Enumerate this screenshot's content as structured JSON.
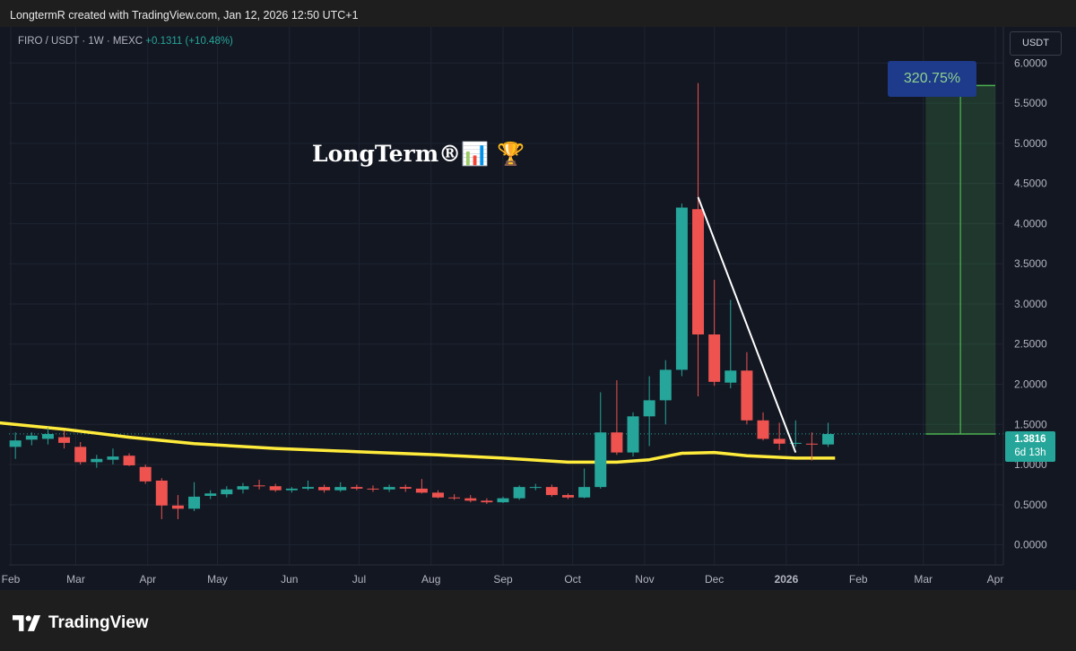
{
  "header": {
    "attribution": "LongtermR created with TradingView.com, Jan 12, 2026 12:50 UTC+1"
  },
  "symbol": {
    "label": "FIRO / USDT · 1W · MEXC",
    "change": "+0.1311 (+10.48%)"
  },
  "currency_button": "USDT",
  "watermark": "LongTerm®📊 🏆",
  "measure_label": "320.75%",
  "price_tag": {
    "price": "1.3816",
    "countdown": "6d 13h"
  },
  "brand": "TradingView",
  "colors": {
    "up": "#26a69a",
    "down": "#ef5350",
    "ma": "#ffeb3b",
    "trendline": "#ffffff",
    "measure": "#4caf50",
    "measure_box": "#1e3a8a"
  },
  "chart_data": {
    "type": "candlestick",
    "y_axis_ticks": [
      "6.0000",
      "5.5000",
      "5.0000",
      "4.5000",
      "4.0000",
      "3.5000",
      "3.0000",
      "2.5000",
      "2.0000",
      "1.5000",
      "1.0000",
      "0.5000",
      "0.0000"
    ],
    "ylim": [
      -0.25,
      6.45
    ],
    "x_axis_labels": [
      "Feb",
      "Mar",
      "Apr",
      "May",
      "Jun",
      "Jul",
      "Aug",
      "Sep",
      "Oct",
      "Nov",
      "Dec",
      "2026",
      "Feb",
      "Mar",
      "Apr"
    ],
    "x_label_dates": [
      "2025-02-01",
      "2025-03-01",
      "2025-04-01",
      "2025-05-01",
      "2025-06-01",
      "2025-07-01",
      "2025-08-01",
      "2025-09-01",
      "2025-10-01",
      "2025-11-01",
      "2025-12-01",
      "2026-01-01",
      "2026-02-01",
      "2026-03-01",
      "2026-04-01"
    ],
    "candles": [
      {
        "t": "2025-02-03",
        "o": 1.22,
        "h": 1.4,
        "l": 1.07,
        "c": 1.3
      },
      {
        "t": "2025-02-10",
        "o": 1.31,
        "h": 1.4,
        "l": 1.24,
        "c": 1.36
      },
      {
        "t": "2025-02-17",
        "o": 1.32,
        "h": 1.46,
        "l": 1.25,
        "c": 1.38
      },
      {
        "t": "2025-02-24",
        "o": 1.34,
        "h": 1.42,
        "l": 1.2,
        "c": 1.27
      },
      {
        "t": "2025-03-03",
        "o": 1.22,
        "h": 1.28,
        "l": 1.0,
        "c": 1.03
      },
      {
        "t": "2025-03-10",
        "o": 1.03,
        "h": 1.12,
        "l": 0.96,
        "c": 1.07
      },
      {
        "t": "2025-03-17",
        "o": 1.06,
        "h": 1.2,
        "l": 1.0,
        "c": 1.1
      },
      {
        "t": "2025-03-24",
        "o": 1.11,
        "h": 1.14,
        "l": 0.98,
        "c": 0.99
      },
      {
        "t": "2025-03-31",
        "o": 0.97,
        "h": 1.0,
        "l": 0.76,
        "c": 0.79
      },
      {
        "t": "2025-04-07",
        "o": 0.8,
        "h": 0.83,
        "l": 0.32,
        "c": 0.49
      },
      {
        "t": "2025-04-14",
        "o": 0.49,
        "h": 0.62,
        "l": 0.32,
        "c": 0.45
      },
      {
        "t": "2025-04-21",
        "o": 0.45,
        "h": 0.78,
        "l": 0.42,
        "c": 0.6
      },
      {
        "t": "2025-04-28",
        "o": 0.61,
        "h": 0.68,
        "l": 0.57,
        "c": 0.64
      },
      {
        "t": "2025-05-05",
        "o": 0.63,
        "h": 0.73,
        "l": 0.59,
        "c": 0.69
      },
      {
        "t": "2025-05-12",
        "o": 0.69,
        "h": 0.77,
        "l": 0.64,
        "c": 0.73
      },
      {
        "t": "2025-05-19",
        "o": 0.74,
        "h": 0.81,
        "l": 0.69,
        "c": 0.73
      },
      {
        "t": "2025-05-26",
        "o": 0.73,
        "h": 0.76,
        "l": 0.66,
        "c": 0.68
      },
      {
        "t": "2025-06-02",
        "o": 0.68,
        "h": 0.72,
        "l": 0.65,
        "c": 0.7
      },
      {
        "t": "2025-06-09",
        "o": 0.7,
        "h": 0.8,
        "l": 0.68,
        "c": 0.72
      },
      {
        "t": "2025-06-16",
        "o": 0.72,
        "h": 0.75,
        "l": 0.65,
        "c": 0.68
      },
      {
        "t": "2025-06-23",
        "o": 0.68,
        "h": 0.78,
        "l": 0.66,
        "c": 0.72
      },
      {
        "t": "2025-06-30",
        "o": 0.72,
        "h": 0.75,
        "l": 0.68,
        "c": 0.7
      },
      {
        "t": "2025-07-07",
        "o": 0.7,
        "h": 0.74,
        "l": 0.66,
        "c": 0.69
      },
      {
        "t": "2025-07-14",
        "o": 0.69,
        "h": 0.75,
        "l": 0.66,
        "c": 0.72
      },
      {
        "t": "2025-07-21",
        "o": 0.72,
        "h": 0.75,
        "l": 0.66,
        "c": 0.7
      },
      {
        "t": "2025-07-28",
        "o": 0.7,
        "h": 0.82,
        "l": 0.64,
        "c": 0.65
      },
      {
        "t": "2025-08-04",
        "o": 0.65,
        "h": 0.68,
        "l": 0.58,
        "c": 0.59
      },
      {
        "t": "2025-08-11",
        "o": 0.59,
        "h": 0.63,
        "l": 0.56,
        "c": 0.58
      },
      {
        "t": "2025-08-18",
        "o": 0.58,
        "h": 0.62,
        "l": 0.53,
        "c": 0.55
      },
      {
        "t": "2025-08-25",
        "o": 0.55,
        "h": 0.58,
        "l": 0.51,
        "c": 0.53
      },
      {
        "t": "2025-09-01",
        "o": 0.53,
        "h": 0.6,
        "l": 0.52,
        "c": 0.58
      },
      {
        "t": "2025-09-08",
        "o": 0.58,
        "h": 0.74,
        "l": 0.56,
        "c": 0.72
      },
      {
        "t": "2025-09-15",
        "o": 0.72,
        "h": 0.76,
        "l": 0.68,
        "c": 0.72
      },
      {
        "t": "2025-09-22",
        "o": 0.72,
        "h": 0.75,
        "l": 0.6,
        "c": 0.62
      },
      {
        "t": "2025-09-29",
        "o": 0.62,
        "h": 0.64,
        "l": 0.57,
        "c": 0.59
      },
      {
        "t": "2025-10-06",
        "o": 0.59,
        "h": 0.95,
        "l": 0.58,
        "c": 0.72
      },
      {
        "t": "2025-10-13",
        "o": 0.72,
        "h": 1.9,
        "l": 0.7,
        "c": 1.4
      },
      {
        "t": "2025-10-20",
        "o": 1.4,
        "h": 2.05,
        "l": 1.12,
        "c": 1.15
      },
      {
        "t": "2025-10-27",
        "o": 1.15,
        "h": 1.65,
        "l": 1.1,
        "c": 1.6
      },
      {
        "t": "2025-11-03",
        "o": 1.6,
        "h": 2.1,
        "l": 1.23,
        "c": 1.8
      },
      {
        "t": "2025-11-10",
        "o": 1.8,
        "h": 2.3,
        "l": 1.5,
        "c": 2.18
      },
      {
        "t": "2025-11-17",
        "o": 2.18,
        "h": 4.25,
        "l": 2.1,
        "c": 4.2
      },
      {
        "t": "2025-11-24",
        "o": 4.18,
        "h": 5.75,
        "l": 1.85,
        "c": 2.62
      },
      {
        "t": "2025-12-01",
        "o": 2.62,
        "h": 3.3,
        "l": 1.98,
        "c": 2.03
      },
      {
        "t": "2025-12-08",
        "o": 2.02,
        "h": 3.05,
        "l": 1.95,
        "c": 2.17
      },
      {
        "t": "2025-12-15",
        "o": 2.17,
        "h": 2.4,
        "l": 1.5,
        "c": 1.55
      },
      {
        "t": "2025-12-22",
        "o": 1.55,
        "h": 1.65,
        "l": 1.3,
        "c": 1.32
      },
      {
        "t": "2025-12-29",
        "o": 1.32,
        "h": 1.52,
        "l": 1.18,
        "c": 1.26
      },
      {
        "t": "2026-01-05",
        "o": 1.26,
        "h": 1.55,
        "l": 1.22,
        "c": 1.27
      },
      {
        "t": "2026-01-12",
        "o": 1.26,
        "h": 1.4,
        "l": 1.05,
        "c": 1.25
      },
      {
        "t": "2026-01-19",
        "o": 1.25,
        "h": 1.52,
        "l": 1.22,
        "c": 1.38
      }
    ],
    "moving_average": [
      {
        "t": "2025-01-27",
        "v": 1.52
      },
      {
        "t": "2025-02-24",
        "v": 1.44
      },
      {
        "t": "2025-03-24",
        "v": 1.34
      },
      {
        "t": "2025-04-21",
        "v": 1.26
      },
      {
        "t": "2025-05-26",
        "v": 1.2
      },
      {
        "t": "2025-06-30",
        "v": 1.16
      },
      {
        "t": "2025-08-04",
        "v": 1.12
      },
      {
        "t": "2025-09-01",
        "v": 1.08
      },
      {
        "t": "2025-09-29",
        "v": 1.03
      },
      {
        "t": "2025-10-20",
        "v": 1.03
      },
      {
        "t": "2025-11-03",
        "v": 1.06
      },
      {
        "t": "2025-11-17",
        "v": 1.14
      },
      {
        "t": "2025-12-01",
        "v": 1.15
      },
      {
        "t": "2025-12-15",
        "v": 1.11
      },
      {
        "t": "2026-01-05",
        "v": 1.08
      },
      {
        "t": "2026-01-22",
        "v": 1.08
      }
    ],
    "trendline": {
      "from": {
        "t": "2025-11-24",
        "v": 4.33
      },
      "to": {
        "t": "2026-01-05",
        "v": 1.15
      }
    },
    "measure": {
      "from": {
        "t": "2026-03-02",
        "v": 1.38
      },
      "to": {
        "t": "2026-04-01",
        "v": 5.72
      },
      "label": "320.75%"
    },
    "current_price": 1.3816
  }
}
